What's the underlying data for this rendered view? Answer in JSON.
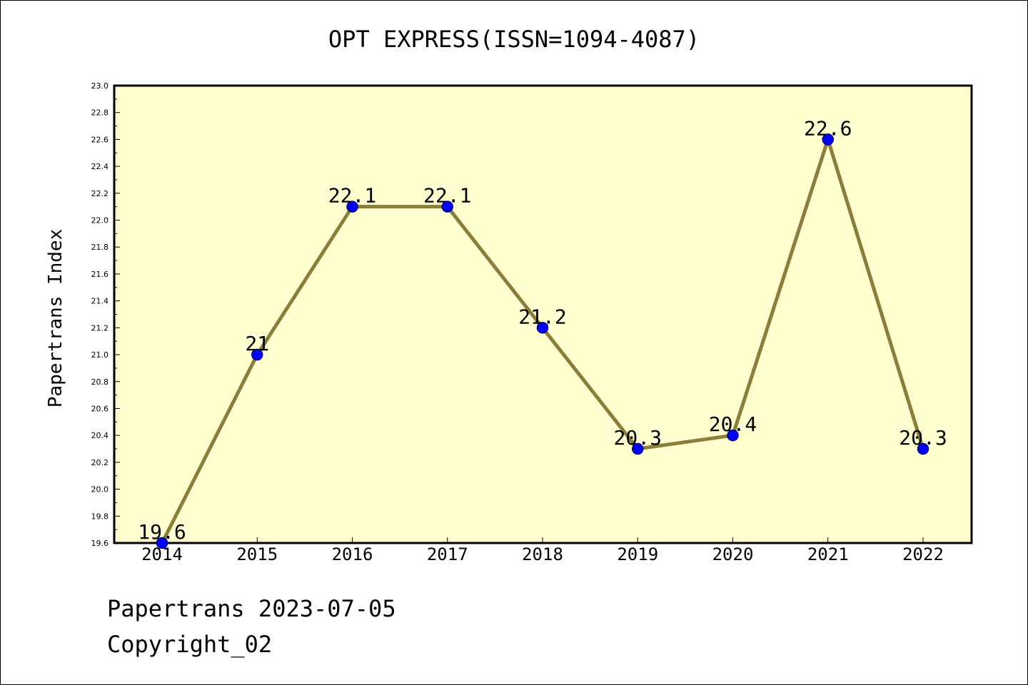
{
  "chart_data": {
    "type": "line",
    "title": "OPT EXPRESS(ISSN=1094-4087)",
    "xlabel": "",
    "ylabel": "Papertrans Index",
    "categories": [
      "2014",
      "2015",
      "2016",
      "2017",
      "2018",
      "2019",
      "2020",
      "2021",
      "2022"
    ],
    "series": [
      {
        "values": [
          19.6,
          21,
          22.1,
          22.1,
          21.2,
          20.3,
          20.4,
          22.6,
          20.3
        ]
      }
    ],
    "data_labels": [
      "19.6",
      "21",
      "22.1",
      "22.1",
      "21.2",
      "20.3",
      "20.4",
      "22.6",
      "20.3"
    ],
    "ylim": [
      19.6,
      23.0
    ],
    "yticks": [
      "19.6",
      "19.8",
      "20.0",
      "20.2",
      "20.4",
      "20.6",
      "20.8",
      "21.0",
      "21.2",
      "21.4",
      "21.6",
      "21.8",
      "22.0",
      "22.2",
      "22.4",
      "22.6",
      "22.8",
      "23.0"
    ],
    "grid": false,
    "colors": {
      "plot_background": "#ffffd0",
      "line": "#8b7d3a",
      "marker_fill": "#0000ff",
      "marker_edge": "#000080"
    }
  },
  "footer": {
    "line1": "Papertrans 2023-07-05",
    "line2": "Copyright_02"
  }
}
